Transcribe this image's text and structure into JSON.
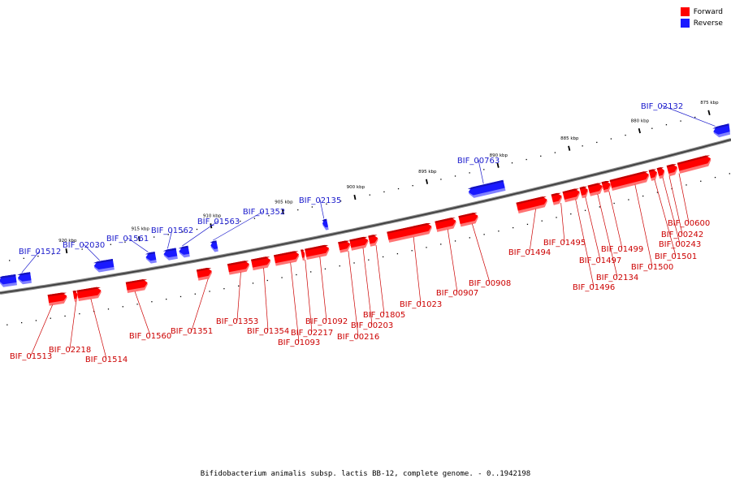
{
  "legend": {
    "forward_label": "Forward",
    "reverse_label": "Reverse",
    "forward_color": "#ff0000",
    "reverse_color": "#1a1aff"
  },
  "caption": "Bifidobacterium animalis subsp. lactis BB-12, complete genome. - 0..1942198",
  "axis_ticks": [
    "875 kbp",
    "880 kbp",
    "885 kbp",
    "890 kbp",
    "895 kbp",
    "900 kbp",
    "905 kbp",
    "910 kbp",
    "915 kbp",
    "920 kbp"
  ],
  "forward_genes": [
    "BIF_01513",
    "BIF_02218",
    "BIF_01514",
    "BIF_01560",
    "BIF_01351",
    "BIF_01353",
    "BIF_01354",
    "BIF_01093",
    "BIF_02217",
    "BIF_01092",
    "BIF_00216",
    "BIF_00203",
    "BIF_01805",
    "BIF_01023",
    "BIF_00907",
    "BIF_00908",
    "BIF_01494",
    "BIF_01495",
    "BIF_01496",
    "BIF_01497",
    "BIF_02134",
    "BIF_01499",
    "BIF_01500",
    "BIF_01501",
    "BIF_00243",
    "BIF_00242",
    "BIF_00600"
  ],
  "reverse_genes": [
    "BIF_01512",
    "BIF_02030",
    "BIF_01561",
    "BIF_01562",
    "BIF_01563",
    "BIF_01352",
    "BIF_02135",
    "BIF_00763",
    "BIF_02132"
  ]
}
